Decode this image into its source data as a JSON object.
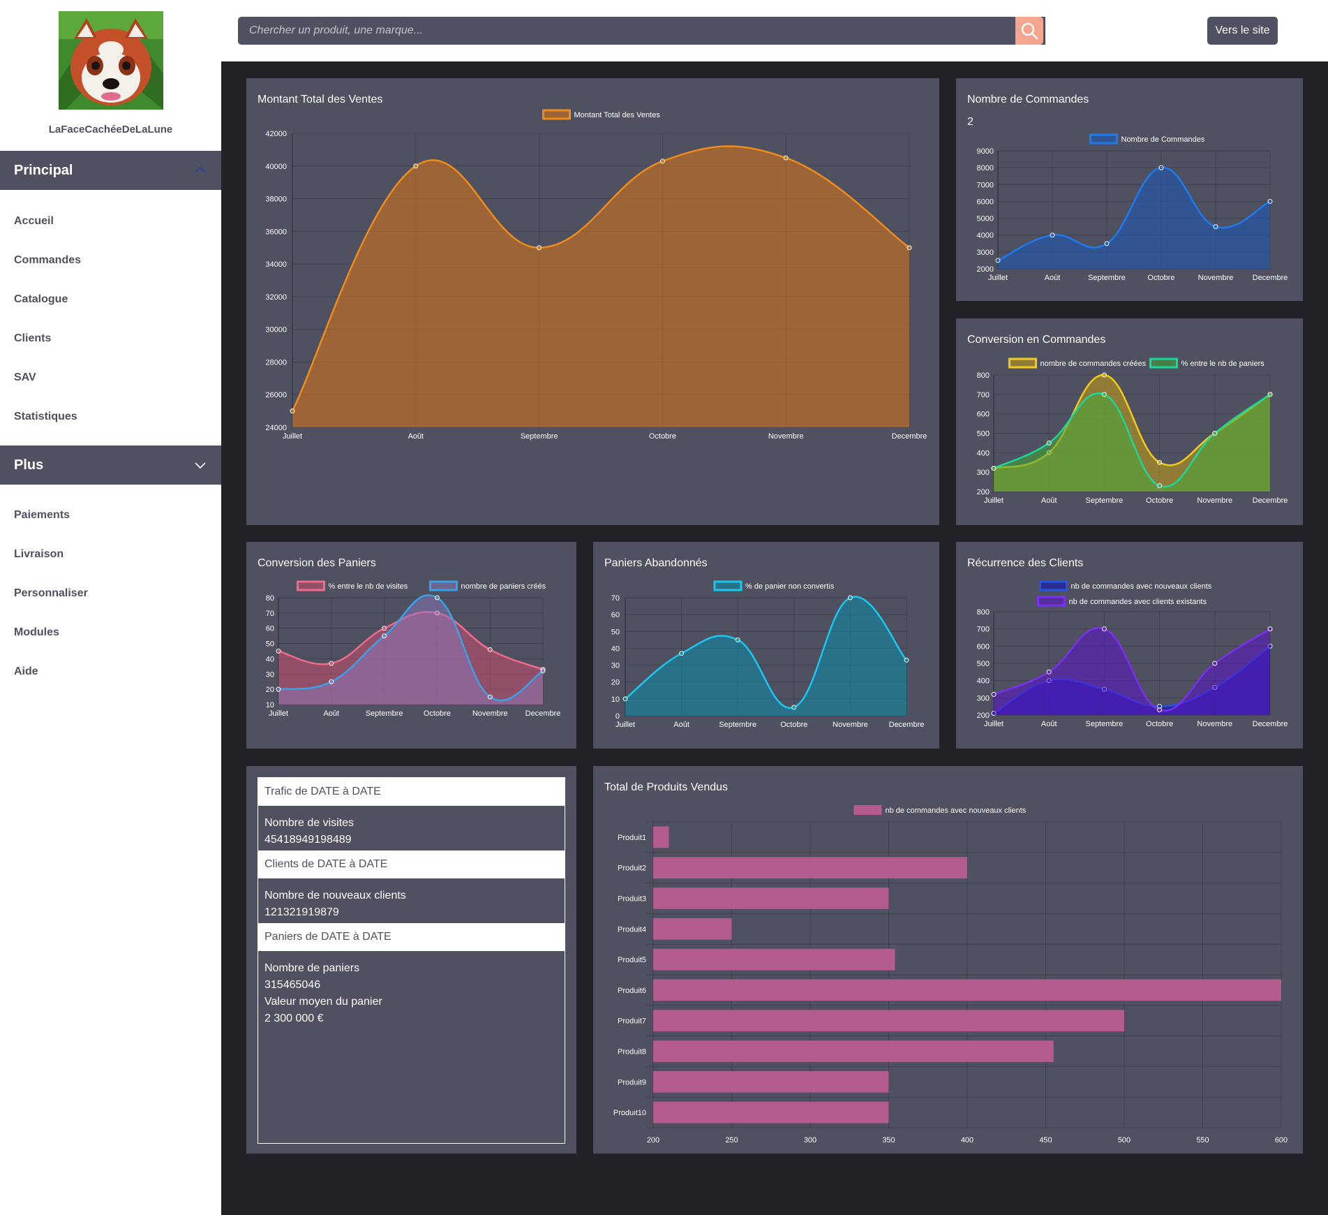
{
  "user": {
    "name": "LaFaceCachéeDeLaLune",
    "avatar_icon": "red-panda-avatar"
  },
  "search": {
    "placeholder": "Chercher un produit, une marque...",
    "icon": "search-icon"
  },
  "header": {
    "site_button": "Vers le site"
  },
  "sidebar": {
    "principal": {
      "label": "Principal",
      "icon": "chevron-up-icon",
      "items": [
        "Accueil",
        "Commandes",
        "Catalogue",
        "Clients",
        "SAV",
        "Statistiques"
      ]
    },
    "plus": {
      "label": "Plus",
      "icon": "chevron-down-icon",
      "items": [
        "Paiements",
        "Livraison",
        "Personnaliser",
        "Modules",
        "Aide"
      ]
    }
  },
  "colors": {
    "card": "#4f5060",
    "background": "#212328",
    "accent": "#f4a58e"
  },
  "cards": {
    "ventes": {
      "title": "Montant Total des Ventes"
    },
    "commandes": {
      "title": "Nombre de Commandes",
      "value": "2"
    },
    "conversion_commandes": {
      "title": "Conversion en Commandes"
    },
    "conversion_paniers": {
      "title": "Conversion des Paniers"
    },
    "paniers_abandonnes": {
      "title": "Paniers Abandonnés"
    },
    "recurrence": {
      "title": "Récurrence des Clients"
    },
    "produits": {
      "title": "Total de Produits Vendus"
    }
  },
  "stats": {
    "trafic_head": "Trafic de DATE à DATE",
    "visites_label": "Nombre de visites",
    "visites_value": "45418949198489",
    "clients_head": "Clients de DATE à DATE",
    "nouveaux_label": "Nombre de nouveaux clients",
    "nouveaux_value": "121321919879",
    "paniers_head": "Paniers de DATE à DATE",
    "paniers_label": "Nombre de paniers",
    "paniers_value": "315465046",
    "valeur_label": "Valeur moyen du panier",
    "valeur_value": "2 300 000 €"
  },
  "chart_data": [
    {
      "id": "ventes",
      "type": "area",
      "categories": [
        "Juillet",
        "Août",
        "Septembre",
        "Octobre",
        "Novembre",
        "Decembre"
      ],
      "series": [
        {
          "name": "Montant Total des Ventes",
          "values": [
            25000,
            40000,
            35000,
            40300,
            40500,
            35000
          ],
          "color": "#f08c1a",
          "fill": "rgba(221,117,21,0.55)"
        }
      ],
      "ylim": [
        24000,
        42000
      ],
      "yticks": [
        24000,
        26000,
        28000,
        30000,
        32000,
        34000,
        36000,
        38000,
        40000,
        42000
      ],
      "legend": "top"
    },
    {
      "id": "commandes",
      "type": "area",
      "categories": [
        "Juillet",
        "Août",
        "Septembre",
        "Octobre",
        "Novembre",
        "Decembre"
      ],
      "series": [
        {
          "name": "Nombre de Commandes",
          "values": [
            2500,
            4000,
            3500,
            8000,
            4500,
            6000
          ],
          "color": "#1c7bf0",
          "fill": "rgba(25,90,190,0.55)"
        }
      ],
      "ylim": [
        2000,
        9000
      ],
      "yticks": [
        2000,
        3000,
        4000,
        5000,
        6000,
        7000,
        8000,
        9000
      ],
      "legend": "top"
    },
    {
      "id": "conversion_commandes",
      "type": "area",
      "categories": [
        "Juillet",
        "Août",
        "Septembre",
        "Octobre",
        "Novembre",
        "Decembre"
      ],
      "series": [
        {
          "name": "nombre de commandes créées",
          "values": [
            320,
            400,
            800,
            350,
            500,
            700
          ],
          "color": "#f2cb1a",
          "fill": "rgba(200,160,20,0.55)"
        },
        {
          "name": "% entre le nb de paniers",
          "values": [
            320,
            450,
            700,
            230,
            500,
            700
          ],
          "color": "#19d99a",
          "fill": "rgba(70,170,60,0.55)"
        }
      ],
      "ylim": [
        200,
        800
      ],
      "yticks": [
        200,
        300,
        400,
        500,
        600,
        700,
        800
      ],
      "legend": "top"
    },
    {
      "id": "conversion_paniers",
      "type": "area",
      "categories": [
        "Juillet",
        "Août",
        "Septembre",
        "Octobre",
        "Novembre",
        "Decembre"
      ],
      "series": [
        {
          "name": "% entre le nb de visites",
          "values": [
            45,
            37,
            60,
            70,
            46,
            33
          ],
          "color": "#f06a8a",
          "fill": "rgba(200,80,110,0.55)"
        },
        {
          "name": "nombre de paniers créés",
          "values": [
            20,
            25,
            55,
            80,
            15,
            32
          ],
          "color": "#36a2eb",
          "fill": "rgba(140,120,190,0.5)"
        }
      ],
      "ylim": [
        10,
        80
      ],
      "yticks": [
        10,
        20,
        30,
        40,
        50,
        60,
        70,
        80
      ],
      "legend": "top"
    },
    {
      "id": "paniers_abandonnes",
      "type": "area",
      "categories": [
        "Juillet",
        "Août",
        "Septembre",
        "Octobre",
        "Novembre",
        "Decembre"
      ],
      "series": [
        {
          "name": "% de panier non convertis",
          "values": [
            10,
            37,
            45,
            5,
            70,
            33
          ],
          "color": "#19c8f0",
          "fill": "rgba(10,140,170,0.55)"
        }
      ],
      "ylim": [
        0,
        70
      ],
      "yticks": [
        0,
        10,
        20,
        30,
        40,
        50,
        60,
        70
      ],
      "legend": "top"
    },
    {
      "id": "recurrence",
      "type": "area",
      "categories": [
        "Juillet",
        "Août",
        "Septembre",
        "Octobre",
        "Novembre",
        "Decembre"
      ],
      "series": [
        {
          "name": "nb de commandes avec nouveaux clients",
          "values": [
            210,
            400,
            350,
            250,
            360,
            600
          ],
          "color": "#2356e8",
          "fill": "rgba(20,20,180,0.6)"
        },
        {
          "name": "nb de commandes avec clients existants",
          "values": [
            320,
            450,
            700,
            230,
            500,
            700
          ],
          "color": "#7b2ff0",
          "fill": "rgba(90,20,200,0.55)"
        }
      ],
      "ylim": [
        200,
        800
      ],
      "yticks": [
        200,
        300,
        400,
        500,
        600,
        700,
        800
      ],
      "legend": "top"
    },
    {
      "id": "produits",
      "type": "bar",
      "orientation": "horizontal",
      "categories": [
        "Produit1",
        "Produit2",
        "Produit3",
        "Produit4",
        "Produit5",
        "Produit6",
        "Produit7",
        "Produit8",
        "Produit9",
        "Produit10"
      ],
      "series": [
        {
          "name": "nb de commandes avec nouveaux clients",
          "values": [
            210,
            400,
            350,
            250,
            354,
            600,
            500,
            455,
            350,
            350
          ],
          "color": "#b45c8e"
        }
      ],
      "xlim": [
        200,
        600
      ],
      "xticks": [
        200,
        250,
        300,
        350,
        400,
        450,
        500,
        550,
        600
      ],
      "legend": "top"
    }
  ]
}
